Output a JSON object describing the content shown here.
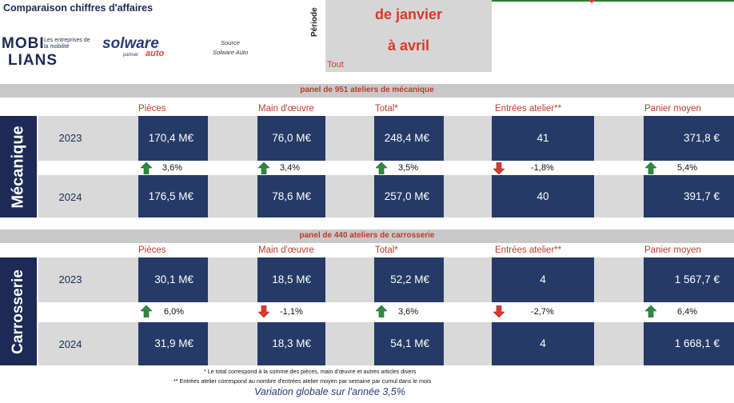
{
  "header": {
    "title": "Comparaison chiffres d'affaires",
    "logo_mobilians_1": "MOBI",
    "logo_mobilians_2": "LIANS",
    "logo_mobilians_sub": "Les entreprises de la mobilité",
    "logo_solware": "solware",
    "logo_partner": "partner",
    "logo_auto": "auto",
    "source_label": "Source",
    "source_value": "Solware Auto",
    "periode_label": "Période",
    "period_from": "de janvier",
    "period_to": "à avril",
    "filter_all": "Tout"
  },
  "columns": [
    "Pièces",
    "Main d'œuvre",
    "Total*",
    "Entrées atelier**",
    "Panier moyen"
  ],
  "mecanique": {
    "section_label": "Mécanique",
    "panel": "panel de 951 ateliers de mécanique",
    "year_a": "2023",
    "year_b": "2024",
    "values_a": [
      "170,4 M€",
      "76,0 M€",
      "248,4 M€",
      "41",
      "371,8 €"
    ],
    "values_b": [
      "176,5 M€",
      "78,6 M€",
      "257,0 M€",
      "40",
      "391,7 €"
    ],
    "variations": [
      "3,6%",
      "3,4%",
      "3,5%",
      "-1,8%",
      "5,4%"
    ],
    "directions": [
      "up",
      "up",
      "up",
      "down",
      "up"
    ]
  },
  "carrosserie": {
    "section_label": "Carrosserie",
    "panel": "panel de 440 ateliers de carrosserie",
    "year_a": "2023",
    "year_b": "2024",
    "values_a": [
      "30,1 M€",
      "18,5 M€",
      "52,2 M€",
      "4",
      "1 567,7 €"
    ],
    "values_b": [
      "31,9 M€",
      "18,3 M€",
      "54,1 M€",
      "4",
      "1 668,1 €"
    ],
    "variations": [
      "6,0%",
      "-1,1%",
      "3,6%",
      "-2,7%",
      "6,4%"
    ],
    "directions": [
      "up",
      "down",
      "up",
      "down",
      "up"
    ]
  },
  "footer": {
    "note1": "* Le total correspond à la somme des pièces, main d'œuvre et autres articles divers",
    "note2": "** Entrées atelier correspond au nombre d'entrées atelier moyen par semaine par cumul dans le mois",
    "global_variation": "Variation globale sur l'année 3,5%"
  },
  "colors": {
    "navy": "#253a66",
    "red": "#c0392b",
    "green_arrow": "#2e8b3e",
    "red_arrow": "#d63a32"
  }
}
